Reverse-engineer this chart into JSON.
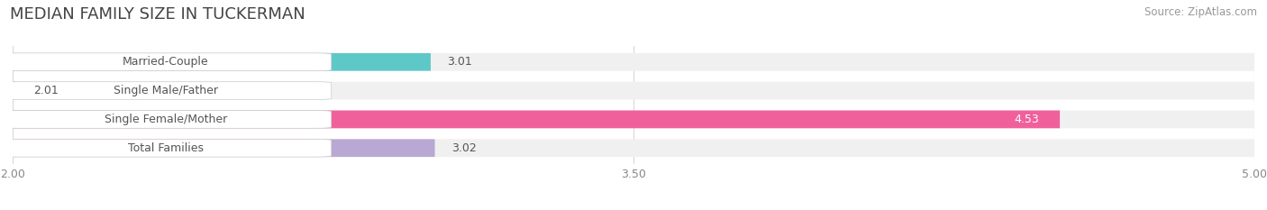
{
  "title": "MEDIAN FAMILY SIZE IN TUCKERMAN",
  "source": "Source: ZipAtlas.com",
  "categories": [
    "Married-Couple",
    "Single Male/Father",
    "Single Female/Mother",
    "Total Families"
  ],
  "values": [
    3.01,
    2.01,
    4.53,
    3.02
  ],
  "bar_colors": [
    "#5ec8c8",
    "#aabfe8",
    "#f0609a",
    "#b9a8d4"
  ],
  "bar_bg_color": "#ebebeb",
  "value_labels": [
    "3.01",
    "2.01",
    "4.53",
    "3.02"
  ],
  "xlim_min": 2.0,
  "xlim_max": 5.0,
  "xticks": [
    2.0,
    3.5,
    5.0
  ],
  "xtick_labels": [
    "2.00",
    "3.50",
    "5.00"
  ],
  "background_color": "#ffffff",
  "bar_bg_color2": "#f0f0f0",
  "bar_height": 0.62,
  "title_fontsize": 13,
  "label_fontsize": 9,
  "value_fontsize": 9,
  "source_fontsize": 8.5,
  "value_label_color_white": 2,
  "label_pill_color": "#ffffff",
  "label_text_color": "#555555",
  "grid_color": "#d8d8d8"
}
